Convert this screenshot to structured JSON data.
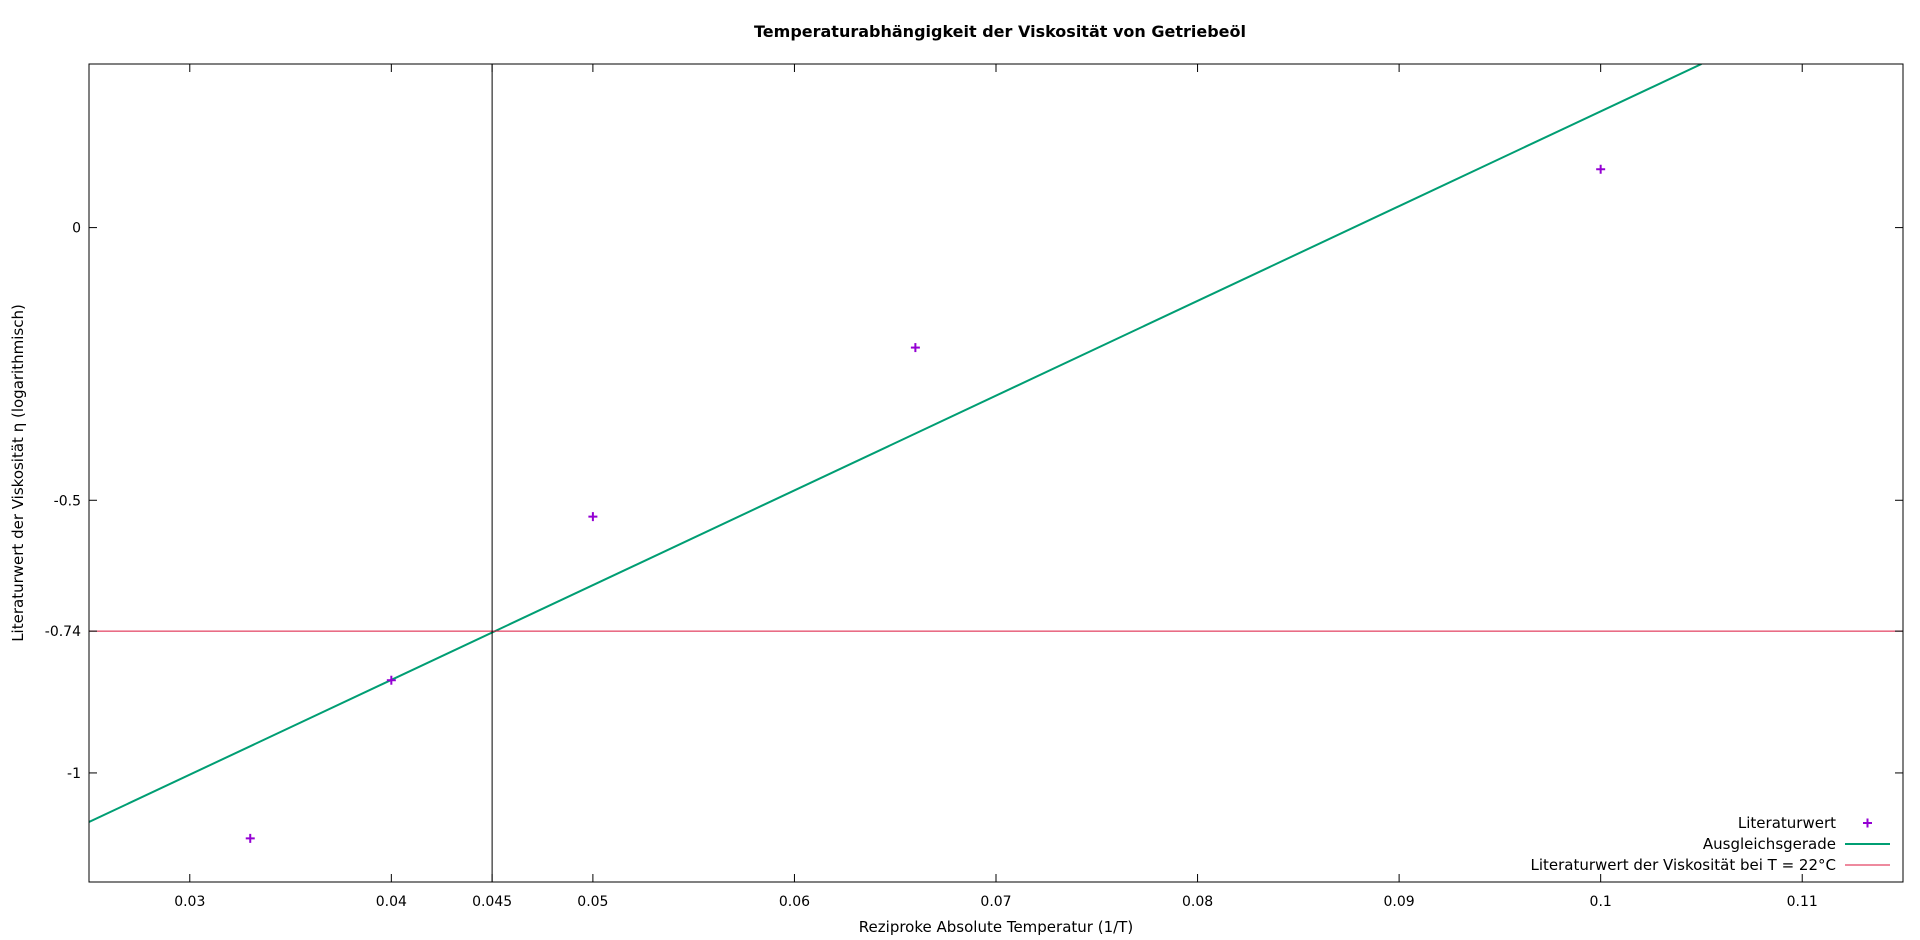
{
  "chart_data": {
    "type": "scatter",
    "title": "Temperaturabhängigkeit der Viskosität von Getriebeöl",
    "xlabel": "Reziproke Absolute Temperatur (1/T)",
    "ylabel": "Literaturwert der Viskosität η (logarithmisch)",
    "xlim": [
      0.025,
      0.115
    ],
    "ylim": [
      -1.2,
      0.3
    ],
    "x_ticks": [
      {
        "value": 0.03,
        "label": "0.03"
      },
      {
        "value": 0.04,
        "label": "0.04"
      },
      {
        "value": 0.045,
        "label": "0.045"
      },
      {
        "value": 0.05,
        "label": "0.05"
      },
      {
        "value": 0.06,
        "label": "0.06"
      },
      {
        "value": 0.07,
        "label": "0.07"
      },
      {
        "value": 0.08,
        "label": "0.08"
      },
      {
        "value": 0.09,
        "label": "0.09"
      },
      {
        "value": 0.1,
        "label": "0.1"
      },
      {
        "value": 0.11,
        "label": "0.11"
      }
    ],
    "y_ticks": [
      {
        "value": 0,
        "label": "0"
      },
      {
        "value": -0.5,
        "label": "-0.5"
      },
      {
        "value": -0.74,
        "label": "-0.74"
      },
      {
        "value": -1,
        "label": "-1"
      }
    ],
    "grid": false,
    "legend_position": "bottom-right",
    "series": [
      {
        "name": "Literaturwert",
        "kind": "points",
        "color": "#9400d3",
        "points": [
          {
            "x": 0.033,
            "y": -1.12
          },
          {
            "x": 0.04,
            "y": -0.83
          },
          {
            "x": 0.05,
            "y": -0.53
          },
          {
            "x": 0.066,
            "y": -0.22
          },
          {
            "x": 0.1,
            "y": 0.107
          }
        ]
      },
      {
        "name": "Ausgleichsgerade",
        "kind": "line",
        "color": "#009e73",
        "points": [
          {
            "x": 0.025,
            "y": -1.09
          },
          {
            "x": 0.105,
            "y": 0.3
          }
        ]
      },
      {
        "name": "Literaturwert der Viskosität bei T = 22°C",
        "kind": "hline",
        "color": "#dc143c",
        "y": -0.74
      }
    ],
    "vline": {
      "x": 0.045,
      "color": "#000000"
    }
  }
}
